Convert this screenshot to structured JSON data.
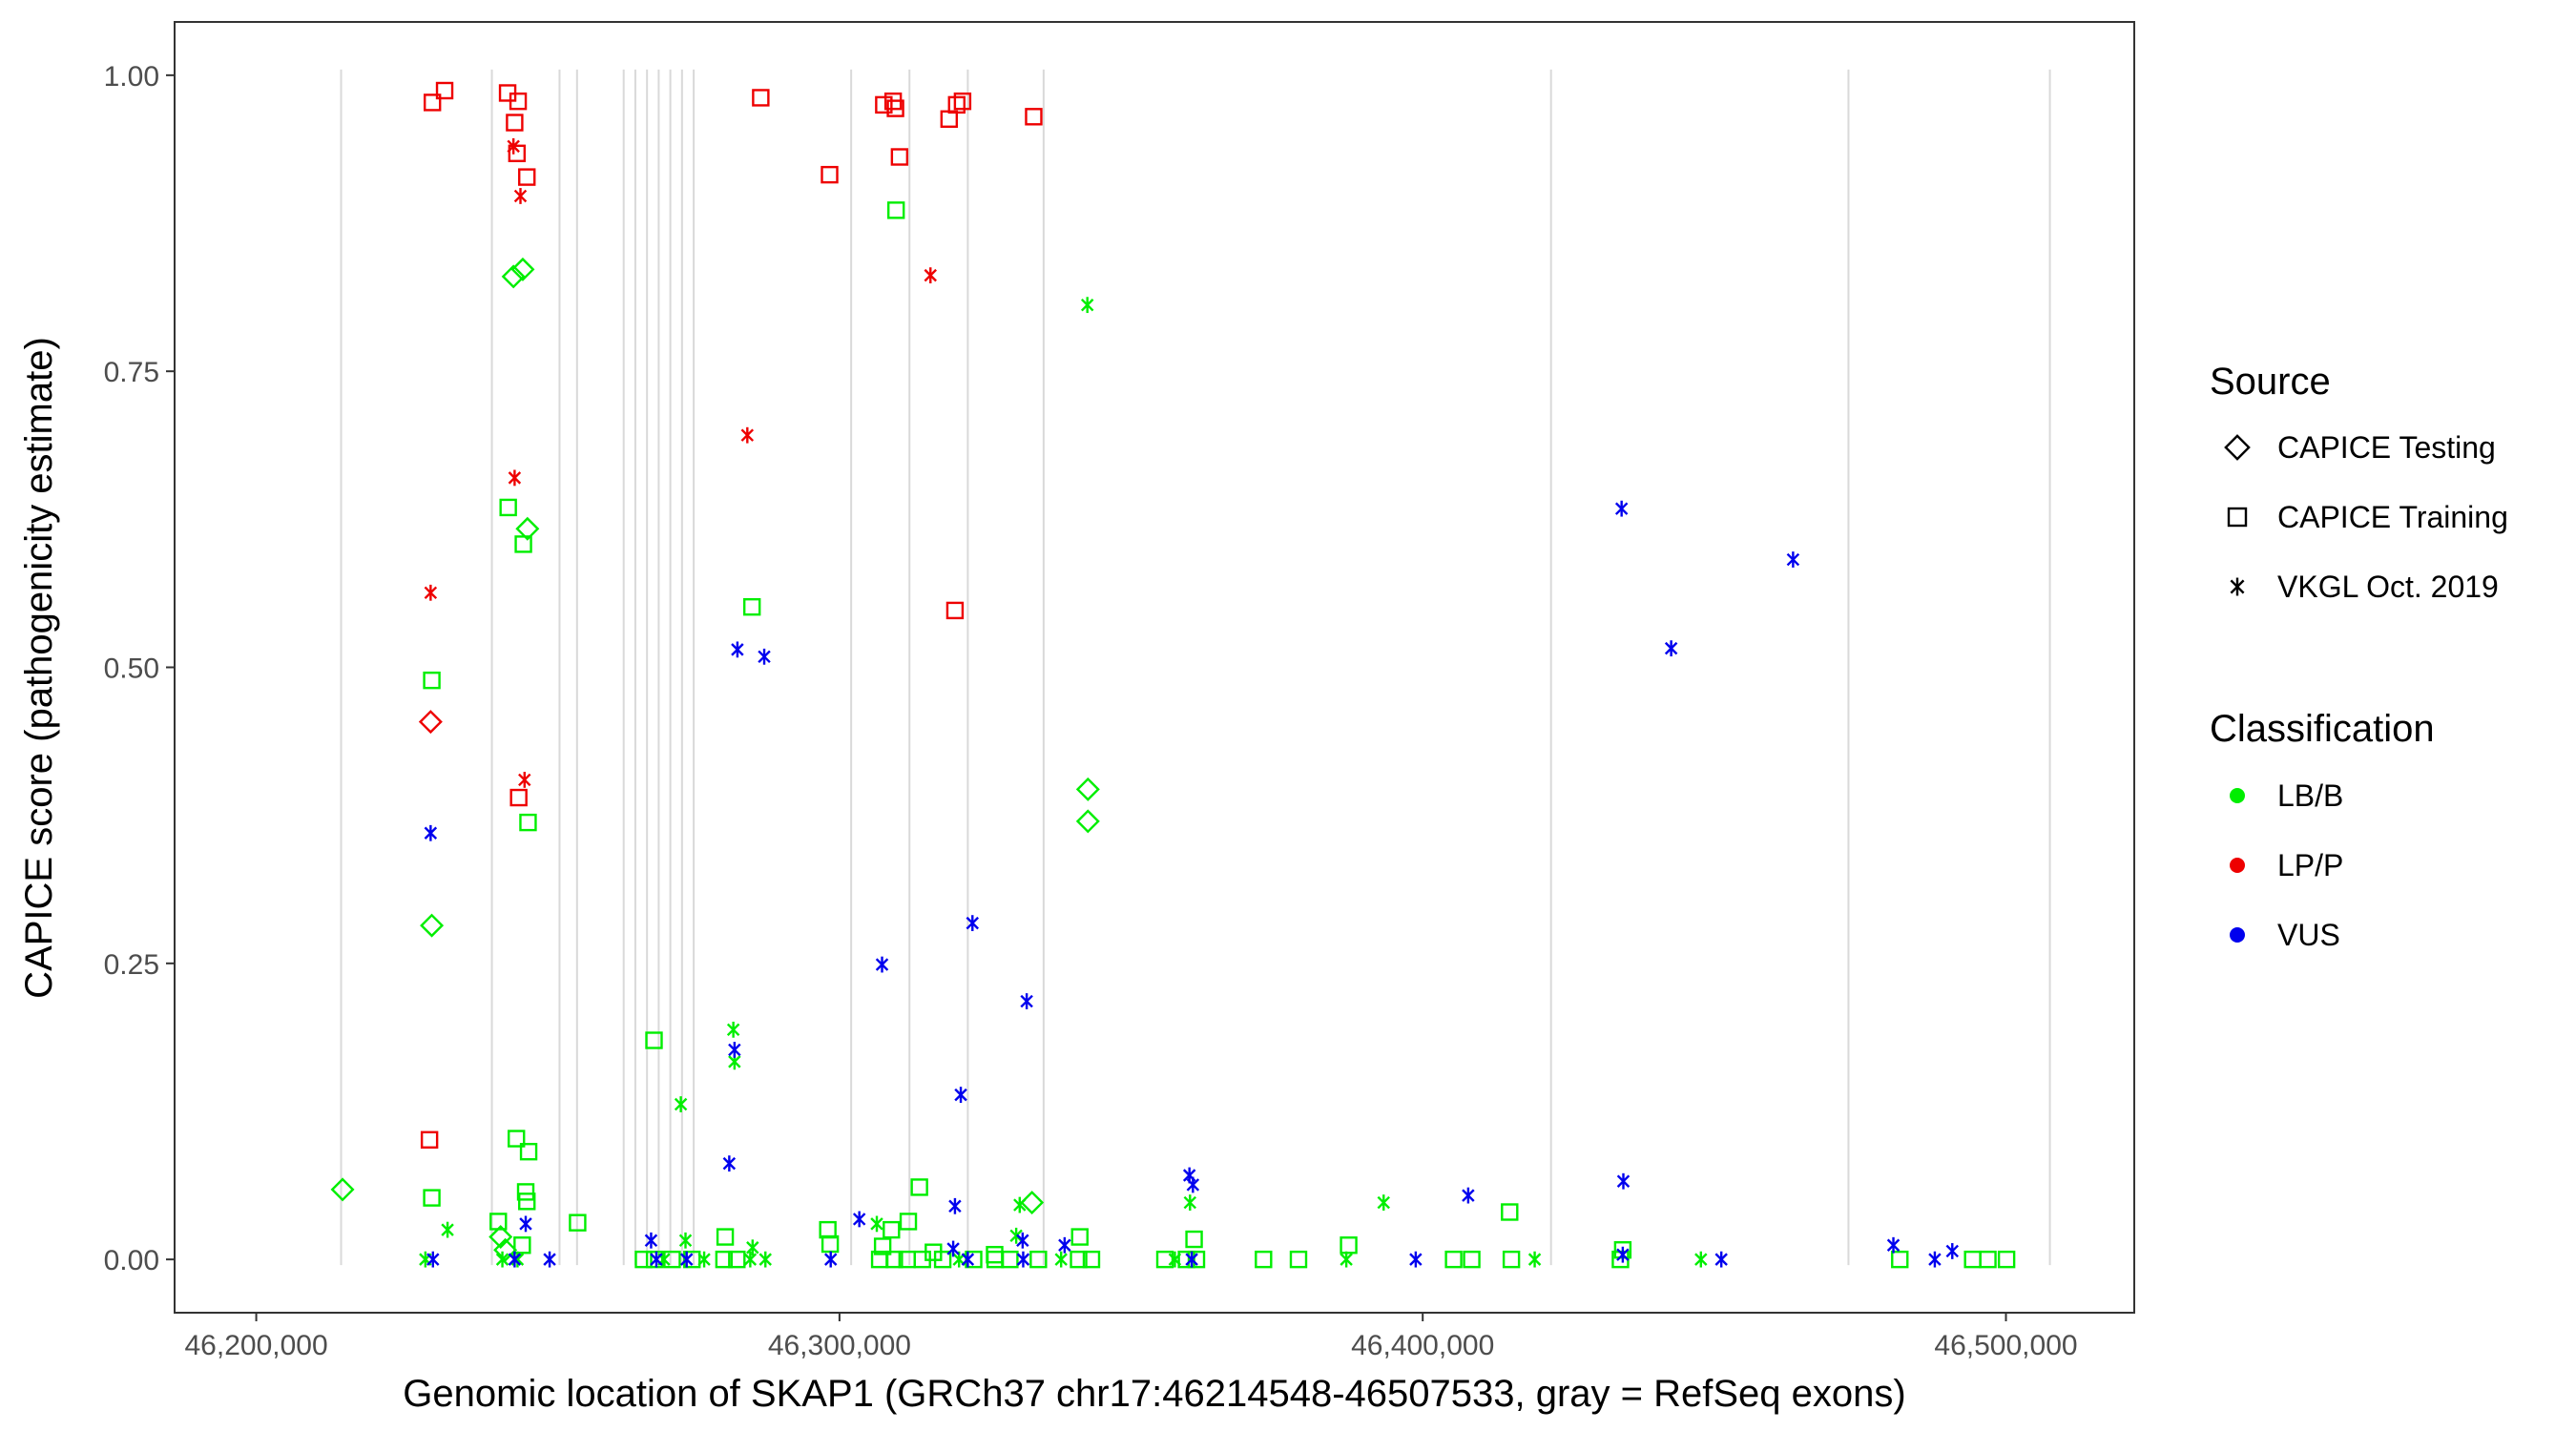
{
  "chart_data": {
    "type": "scatter",
    "xlabel": "Genomic location of SKAP1 (GRCh37 chr17:46214548-46507533, gray = RefSeq exons)",
    "ylabel": "CAPICE score (pathogenicity estimate)",
    "xlim": [
      46186000,
      46522000
    ],
    "ylim": [
      -0.045,
      1.045
    ],
    "x_ticks": [
      46200000,
      46300000,
      46400000,
      46500000
    ],
    "x_tick_labels": [
      "46,200,000",
      "46,300,000",
      "46,400,000",
      "46,500,000"
    ],
    "y_ticks": [
      0.0,
      0.25,
      0.5,
      0.75,
      1.0
    ],
    "y_tick_labels": [
      "0.00",
      "0.25",
      "0.50",
      "0.75",
      "1.00"
    ],
    "exon_positions": [
      46214548,
      46240400,
      46252000,
      46255000,
      46263000,
      46265000,
      46267000,
      46269000,
      46271000,
      46273000,
      46275000,
      46302000,
      46312000,
      46322000,
      46335000,
      46422000,
      46473000,
      46507533
    ],
    "legend_source": {
      "title": "Source",
      "items": [
        {
          "label": "CAPICE Testing",
          "shape": "diamond"
        },
        {
          "label": "CAPICE Training",
          "shape": "square"
        },
        {
          "label": "VKGL Oct. 2019",
          "shape": "asterisk"
        }
      ]
    },
    "legend_classification": {
      "title": "Classification",
      "items": [
        {
          "label": "LB/B",
          "color": "#00ee00"
        },
        {
          "label": "LP/P",
          "color": "#ee0000"
        },
        {
          "label": "VUS",
          "color": "#0000ee"
        }
      ]
    },
    "legend_placement": "right",
    "grid": false,
    "points": [
      {
        "x": 46230200,
        "y": 0.977,
        "s": "square",
        "c": "LP/P"
      },
      {
        "x": 46232300,
        "y": 0.987,
        "s": "square",
        "c": "LP/P"
      },
      {
        "x": 46243100,
        "y": 0.985,
        "s": "square",
        "c": "LP/P"
      },
      {
        "x": 46244900,
        "y": 0.978,
        "s": "square",
        "c": "LP/P"
      },
      {
        "x": 46244300,
        "y": 0.96,
        "s": "square",
        "c": "LP/P"
      },
      {
        "x": 46244700,
        "y": 0.934,
        "s": "square",
        "c": "LP/P"
      },
      {
        "x": 46246400,
        "y": 0.914,
        "s": "square",
        "c": "LP/P"
      },
      {
        "x": 46244100,
        "y": 0.94,
        "s": "asterisk",
        "c": "LP/P"
      },
      {
        "x": 46245300,
        "y": 0.898,
        "s": "asterisk",
        "c": "LP/P"
      },
      {
        "x": 46244300,
        "y": 0.66,
        "s": "asterisk",
        "c": "LP/P"
      },
      {
        "x": 46229900,
        "y": 0.563,
        "s": "asterisk",
        "c": "LP/P"
      },
      {
        "x": 46229900,
        "y": 0.454,
        "s": "diamond",
        "c": "LP/P"
      },
      {
        "x": 46246000,
        "y": 0.405,
        "s": "asterisk",
        "c": "LP/P"
      },
      {
        "x": 46245000,
        "y": 0.39,
        "s": "square",
        "c": "LP/P"
      },
      {
        "x": 46229700,
        "y": 0.101,
        "s": "square",
        "c": "LP/P"
      },
      {
        "x": 46286500,
        "y": 0.981,
        "s": "square",
        "c": "LP/P"
      },
      {
        "x": 46298300,
        "y": 0.916,
        "s": "square",
        "c": "LP/P"
      },
      {
        "x": 46307600,
        "y": 0.975,
        "s": "square",
        "c": "LP/P"
      },
      {
        "x": 46309200,
        "y": 0.978,
        "s": "square",
        "c": "LP/P"
      },
      {
        "x": 46309600,
        "y": 0.972,
        "s": "square",
        "c": "LP/P"
      },
      {
        "x": 46310300,
        "y": 0.931,
        "s": "square",
        "c": "LP/P"
      },
      {
        "x": 46320100,
        "y": 0.975,
        "s": "square",
        "c": "LP/P"
      },
      {
        "x": 46321100,
        "y": 0.978,
        "s": "square",
        "c": "LP/P"
      },
      {
        "x": 46318800,
        "y": 0.963,
        "s": "square",
        "c": "LP/P"
      },
      {
        "x": 46333300,
        "y": 0.965,
        "s": "square",
        "c": "LP/P"
      },
      {
        "x": 46315600,
        "y": 0.831,
        "s": "asterisk",
        "c": "LP/P"
      },
      {
        "x": 46284200,
        "y": 0.696,
        "s": "asterisk",
        "c": "LP/P"
      },
      {
        "x": 46319800,
        "y": 0.548,
        "s": "square",
        "c": "LP/P"
      },
      {
        "x": 46244100,
        "y": 0.83,
        "s": "diamond",
        "c": "LB/B"
      },
      {
        "x": 46245700,
        "y": 0.836,
        "s": "diamond",
        "c": "LB/B"
      },
      {
        "x": 46243200,
        "y": 0.635,
        "s": "square",
        "c": "LB/B"
      },
      {
        "x": 46246500,
        "y": 0.617,
        "s": "diamond",
        "c": "LB/B"
      },
      {
        "x": 46245800,
        "y": 0.604,
        "s": "square",
        "c": "LB/B"
      },
      {
        "x": 46230100,
        "y": 0.489,
        "s": "square",
        "c": "LB/B"
      },
      {
        "x": 46246600,
        "y": 0.369,
        "s": "square",
        "c": "LB/B"
      },
      {
        "x": 46230100,
        "y": 0.282,
        "s": "diamond",
        "c": "LB/B"
      },
      {
        "x": 46244600,
        "y": 0.102,
        "s": "square",
        "c": "LB/B"
      },
      {
        "x": 46246700,
        "y": 0.091,
        "s": "square",
        "c": "LB/B"
      },
      {
        "x": 46214800,
        "y": 0.059,
        "s": "diamond",
        "c": "LB/B"
      },
      {
        "x": 46230100,
        "y": 0.052,
        "s": "square",
        "c": "LB/B"
      },
      {
        "x": 46246200,
        "y": 0.057,
        "s": "square",
        "c": "LB/B"
      },
      {
        "x": 46246400,
        "y": 0.049,
        "s": "square",
        "c": "LB/B"
      },
      {
        "x": 46241500,
        "y": 0.032,
        "s": "square",
        "c": "LB/B"
      },
      {
        "x": 46255100,
        "y": 0.031,
        "s": "square",
        "c": "LB/B"
      },
      {
        "x": 46232800,
        "y": 0.025,
        "s": "asterisk",
        "c": "LB/B"
      },
      {
        "x": 46241900,
        "y": 0.019,
        "s": "diamond",
        "c": "LB/B"
      },
      {
        "x": 46242700,
        "y": 0.008,
        "s": "diamond",
        "c": "LB/B"
      },
      {
        "x": 46245600,
        "y": 0.012,
        "s": "square",
        "c": "LB/B"
      },
      {
        "x": 46229000,
        "y": 0.0,
        "s": "asterisk",
        "c": "LB/B"
      },
      {
        "x": 46242200,
        "y": 0.0,
        "s": "asterisk",
        "c": "LB/B"
      },
      {
        "x": 46244800,
        "y": 0.0,
        "s": "asterisk",
        "c": "LB/B"
      },
      {
        "x": 46309700,
        "y": 0.886,
        "s": "square",
        "c": "LB/B"
      },
      {
        "x": 46342500,
        "y": 0.806,
        "s": "asterisk",
        "c": "LB/B"
      },
      {
        "x": 46285000,
        "y": 0.551,
        "s": "square",
        "c": "LB/B"
      },
      {
        "x": 46342600,
        "y": 0.397,
        "s": "diamond",
        "c": "LB/B"
      },
      {
        "x": 46342600,
        "y": 0.37,
        "s": "diamond",
        "c": "LB/B"
      },
      {
        "x": 46281800,
        "y": 0.194,
        "s": "asterisk",
        "c": "LB/B"
      },
      {
        "x": 46268200,
        "y": 0.185,
        "s": "square",
        "c": "LB/B"
      },
      {
        "x": 46282000,
        "y": 0.167,
        "s": "asterisk",
        "c": "LB/B"
      },
      {
        "x": 46272800,
        "y": 0.131,
        "s": "asterisk",
        "c": "LB/B"
      },
      {
        "x": 46313700,
        "y": 0.061,
        "s": "square",
        "c": "LB/B"
      },
      {
        "x": 46330900,
        "y": 0.046,
        "s": "asterisk",
        "c": "LB/B"
      },
      {
        "x": 46333000,
        "y": 0.048,
        "s": "diamond",
        "c": "LB/B"
      },
      {
        "x": 46360100,
        "y": 0.048,
        "s": "asterisk",
        "c": "LB/B"
      },
      {
        "x": 46393300,
        "y": 0.048,
        "s": "asterisk",
        "c": "LB/B"
      },
      {
        "x": 46414900,
        "y": 0.04,
        "s": "square",
        "c": "LB/B"
      },
      {
        "x": 46311800,
        "y": 0.032,
        "s": "square",
        "c": "LB/B"
      },
      {
        "x": 46306400,
        "y": 0.03,
        "s": "asterisk",
        "c": "LB/B"
      },
      {
        "x": 46308900,
        "y": 0.025,
        "s": "square",
        "c": "LB/B"
      },
      {
        "x": 46298000,
        "y": 0.025,
        "s": "square",
        "c": "LB/B"
      },
      {
        "x": 46280400,
        "y": 0.019,
        "s": "square",
        "c": "LB/B"
      },
      {
        "x": 46330300,
        "y": 0.02,
        "s": "asterisk",
        "c": "LB/B"
      },
      {
        "x": 46341200,
        "y": 0.019,
        "s": "square",
        "c": "LB/B"
      },
      {
        "x": 46273600,
        "y": 0.016,
        "s": "asterisk",
        "c": "LB/B"
      },
      {
        "x": 46360800,
        "y": 0.017,
        "s": "square",
        "c": "LB/B"
      },
      {
        "x": 46387300,
        "y": 0.012,
        "s": "square",
        "c": "LB/B"
      },
      {
        "x": 46434300,
        "y": 0.008,
        "s": "square",
        "c": "LB/B"
      },
      {
        "x": 46298400,
        "y": 0.013,
        "s": "square",
        "c": "LB/B"
      },
      {
        "x": 46307400,
        "y": 0.011,
        "s": "square",
        "c": "LB/B"
      },
      {
        "x": 46285100,
        "y": 0.01,
        "s": "asterisk",
        "c": "LB/B"
      },
      {
        "x": 46316100,
        "y": 0.006,
        "s": "square",
        "c": "LB/B"
      },
      {
        "x": 46326600,
        "y": 0.004,
        "s": "square",
        "c": "LB/B"
      },
      {
        "x": 46266400,
        "y": 0.0,
        "s": "square",
        "c": "LB/B"
      },
      {
        "x": 46268300,
        "y": 0.0,
        "s": "square",
        "c": "LB/B"
      },
      {
        "x": 46269900,
        "y": 0.0,
        "s": "asterisk",
        "c": "LB/B"
      },
      {
        "x": 46271300,
        "y": 0.0,
        "s": "square",
        "c": "LB/B"
      },
      {
        "x": 46274700,
        "y": 0.0,
        "s": "square",
        "c": "LB/B"
      },
      {
        "x": 46276800,
        "y": 0.0,
        "s": "asterisk",
        "c": "LB/B"
      },
      {
        "x": 46280200,
        "y": 0.0,
        "s": "square",
        "c": "LB/B"
      },
      {
        "x": 46282400,
        "y": 0.0,
        "s": "square",
        "c": "LB/B"
      },
      {
        "x": 46284700,
        "y": 0.0,
        "s": "asterisk",
        "c": "LB/B"
      },
      {
        "x": 46287300,
        "y": 0.0,
        "s": "asterisk",
        "c": "LB/B"
      },
      {
        "x": 46306900,
        "y": 0.0,
        "s": "square",
        "c": "LB/B"
      },
      {
        "x": 46309400,
        "y": 0.0,
        "s": "square",
        "c": "LB/B"
      },
      {
        "x": 46311600,
        "y": 0.0,
        "s": "square",
        "c": "LB/B"
      },
      {
        "x": 46314200,
        "y": 0.0,
        "s": "square",
        "c": "LB/B"
      },
      {
        "x": 46317700,
        "y": 0.0,
        "s": "square",
        "c": "LB/B"
      },
      {
        "x": 46320500,
        "y": 0.0,
        "s": "asterisk",
        "c": "LB/B"
      },
      {
        "x": 46323000,
        "y": 0.0,
        "s": "square",
        "c": "LB/B"
      },
      {
        "x": 46326700,
        "y": 0.0,
        "s": "square",
        "c": "LB/B"
      },
      {
        "x": 46329200,
        "y": 0.0,
        "s": "square",
        "c": "LB/B"
      },
      {
        "x": 46334100,
        "y": 0.0,
        "s": "square",
        "c": "LB/B"
      },
      {
        "x": 46338000,
        "y": 0.0,
        "s": "asterisk",
        "c": "LB/B"
      },
      {
        "x": 46341000,
        "y": 0.0,
        "s": "square",
        "c": "LB/B"
      },
      {
        "x": 46343200,
        "y": 0.0,
        "s": "square",
        "c": "LB/B"
      },
      {
        "x": 46355800,
        "y": 0.0,
        "s": "square",
        "c": "LB/B"
      },
      {
        "x": 46357500,
        "y": 0.0,
        "s": "asterisk",
        "c": "LB/B"
      },
      {
        "x": 46359500,
        "y": 0.0,
        "s": "square",
        "c": "LB/B"
      },
      {
        "x": 46361200,
        "y": 0.0,
        "s": "square",
        "c": "LB/B"
      },
      {
        "x": 46372700,
        "y": 0.0,
        "s": "square",
        "c": "LB/B"
      },
      {
        "x": 46378700,
        "y": 0.0,
        "s": "square",
        "c": "LB/B"
      },
      {
        "x": 46386900,
        "y": 0.0,
        "s": "asterisk",
        "c": "LB/B"
      },
      {
        "x": 46405300,
        "y": 0.0,
        "s": "square",
        "c": "LB/B"
      },
      {
        "x": 46408400,
        "y": 0.0,
        "s": "square",
        "c": "LB/B"
      },
      {
        "x": 46415200,
        "y": 0.0,
        "s": "square",
        "c": "LB/B"
      },
      {
        "x": 46419200,
        "y": 0.0,
        "s": "asterisk",
        "c": "LB/B"
      },
      {
        "x": 46433900,
        "y": 0.0,
        "s": "square",
        "c": "LB/B"
      },
      {
        "x": 46447700,
        "y": 0.0,
        "s": "asterisk",
        "c": "LB/B"
      },
      {
        "x": 46481800,
        "y": 0.0,
        "s": "square",
        "c": "LB/B"
      },
      {
        "x": 46494300,
        "y": 0.0,
        "s": "square",
        "c": "LB/B"
      },
      {
        "x": 46496900,
        "y": 0.0,
        "s": "square",
        "c": "LB/B"
      },
      {
        "x": 46500100,
        "y": 0.0,
        "s": "square",
        "c": "LB/B"
      },
      {
        "x": 46229900,
        "y": 0.36,
        "s": "asterisk",
        "c": "VUS"
      },
      {
        "x": 46246200,
        "y": 0.03,
        "s": "asterisk",
        "c": "VUS"
      },
      {
        "x": 46230300,
        "y": 0.0,
        "s": "asterisk",
        "c": "VUS"
      },
      {
        "x": 46244300,
        "y": 0.0,
        "s": "asterisk",
        "c": "VUS"
      },
      {
        "x": 46250300,
        "y": 0.0,
        "s": "asterisk",
        "c": "VUS"
      },
      {
        "x": 46282500,
        "y": 0.515,
        "s": "asterisk",
        "c": "VUS"
      },
      {
        "x": 46287100,
        "y": 0.509,
        "s": "asterisk",
        "c": "VUS"
      },
      {
        "x": 46322800,
        "y": 0.284,
        "s": "asterisk",
        "c": "VUS"
      },
      {
        "x": 46307300,
        "y": 0.249,
        "s": "asterisk",
        "c": "VUS"
      },
      {
        "x": 46332100,
        "y": 0.218,
        "s": "asterisk",
        "c": "VUS"
      },
      {
        "x": 46282000,
        "y": 0.177,
        "s": "asterisk",
        "c": "VUS"
      },
      {
        "x": 46320800,
        "y": 0.139,
        "s": "asterisk",
        "c": "VUS"
      },
      {
        "x": 46281100,
        "y": 0.081,
        "s": "asterisk",
        "c": "VUS"
      },
      {
        "x": 46319800,
        "y": 0.045,
        "s": "asterisk",
        "c": "VUS"
      },
      {
        "x": 46303400,
        "y": 0.034,
        "s": "asterisk",
        "c": "VUS"
      },
      {
        "x": 46360000,
        "y": 0.071,
        "s": "asterisk",
        "c": "VUS"
      },
      {
        "x": 46360600,
        "y": 0.063,
        "s": "asterisk",
        "c": "VUS"
      },
      {
        "x": 46267700,
        "y": 0.016,
        "s": "asterisk",
        "c": "VUS"
      },
      {
        "x": 46331400,
        "y": 0.016,
        "s": "asterisk",
        "c": "VUS"
      },
      {
        "x": 46338600,
        "y": 0.012,
        "s": "asterisk",
        "c": "VUS"
      },
      {
        "x": 46319500,
        "y": 0.009,
        "s": "asterisk",
        "c": "VUS"
      },
      {
        "x": 46268600,
        "y": 0.0,
        "s": "asterisk",
        "c": "VUS"
      },
      {
        "x": 46273800,
        "y": 0.0,
        "s": "asterisk",
        "c": "VUS"
      },
      {
        "x": 46298500,
        "y": 0.0,
        "s": "asterisk",
        "c": "VUS"
      },
      {
        "x": 46322000,
        "y": 0.0,
        "s": "asterisk",
        "c": "VUS"
      },
      {
        "x": 46331500,
        "y": 0.0,
        "s": "asterisk",
        "c": "VUS"
      },
      {
        "x": 46360400,
        "y": 0.0,
        "s": "asterisk",
        "c": "VUS"
      },
      {
        "x": 46398800,
        "y": 0.0,
        "s": "asterisk",
        "c": "VUS"
      },
      {
        "x": 46434100,
        "y": 0.634,
        "s": "asterisk",
        "c": "VUS"
      },
      {
        "x": 46463500,
        "y": 0.591,
        "s": "asterisk",
        "c": "VUS"
      },
      {
        "x": 46442600,
        "y": 0.516,
        "s": "asterisk",
        "c": "VUS"
      },
      {
        "x": 46434400,
        "y": 0.066,
        "s": "asterisk",
        "c": "VUS"
      },
      {
        "x": 46407800,
        "y": 0.054,
        "s": "asterisk",
        "c": "VUS"
      },
      {
        "x": 46480700,
        "y": 0.012,
        "s": "asterisk",
        "c": "VUS"
      },
      {
        "x": 46490800,
        "y": 0.007,
        "s": "asterisk",
        "c": "VUS"
      },
      {
        "x": 46434300,
        "y": 0.004,
        "s": "asterisk",
        "c": "VUS"
      },
      {
        "x": 46451200,
        "y": 0.0,
        "s": "asterisk",
        "c": "VUS"
      },
      {
        "x": 46487800,
        "y": 0.0,
        "s": "asterisk",
        "c": "VUS"
      }
    ]
  }
}
